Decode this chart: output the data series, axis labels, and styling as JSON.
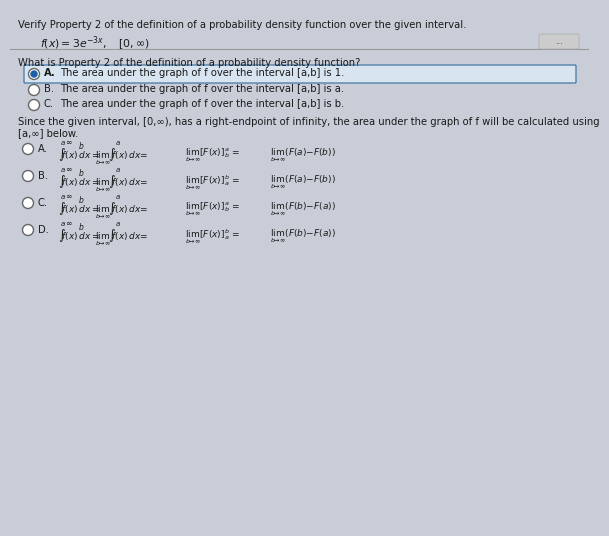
{
  "bg_color": "#c8cdd8",
  "title_line": "Verify Property 2 of the definition of a probability density function over the given interval.",
  "question": "What is Property 2 of the definition of a probability density function?",
  "options_q1": [
    {
      "label": "A.",
      "text": "The area under the graph of f over the interval [a,b] is 1.",
      "selected": true
    },
    {
      "label": "B.",
      "text": "The area under the graph of f over the interval [a,b] is a.",
      "selected": false
    },
    {
      "label": "C.",
      "text": "The area under the graph of f over the interval [a,b] is b.",
      "selected": false
    }
  ],
  "since_text": "Since the given interval, [0,∞), has a right-endpoint of infinity, the area under the graph of f will be calculated using",
  "since_text2": "[a,∞] below.",
  "text_color": "#1a1a1a",
  "highlight_color": "#d8e4f0",
  "highlight_border": "#5580aa"
}
